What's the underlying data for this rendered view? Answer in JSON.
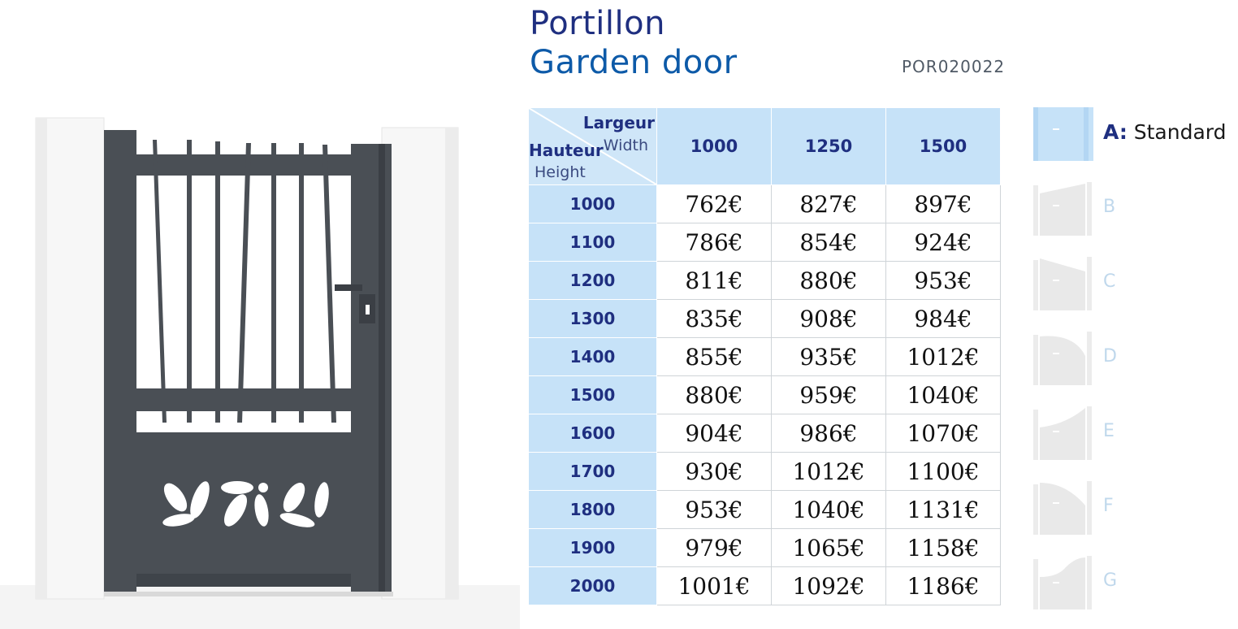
{
  "product": {
    "title_fr": "Portillon",
    "title_en": "Garden door",
    "reference": "POR020022"
  },
  "table": {
    "header": {
      "largeur": "Largeur",
      "width": "Width",
      "hauteur": "Hauteur",
      "height": "Height"
    },
    "columns": [
      "1000",
      "1250",
      "1500"
    ],
    "rows": [
      {
        "height": "1000",
        "prices": [
          "762€",
          "827€",
          "897€"
        ]
      },
      {
        "height": "1100",
        "prices": [
          "786€",
          "854€",
          "924€"
        ]
      },
      {
        "height": "1200",
        "prices": [
          "811€",
          "880€",
          "953€"
        ]
      },
      {
        "height": "1300",
        "prices": [
          "835€",
          "908€",
          "984€"
        ]
      },
      {
        "height": "1400",
        "prices": [
          "855€",
          "935€",
          "1012€"
        ]
      },
      {
        "height": "1500",
        "prices": [
          "880€",
          "959€",
          "1040€"
        ]
      },
      {
        "height": "1600",
        "prices": [
          "904€",
          "986€",
          "1070€"
        ]
      },
      {
        "height": "1700",
        "prices": [
          "930€",
          "1012€",
          "1100€"
        ]
      },
      {
        "height": "1800",
        "prices": [
          "953€",
          "1040€",
          "1131€"
        ]
      },
      {
        "height": "1900",
        "prices": [
          "979€",
          "1065€",
          "1158€"
        ]
      },
      {
        "height": "2000",
        "prices": [
          "1001€",
          "1092€",
          "1186€"
        ]
      }
    ]
  },
  "models": [
    {
      "letter": "A",
      "label": "Standard",
      "active": true
    },
    {
      "letter": "B",
      "label": "",
      "active": false
    },
    {
      "letter": "C",
      "label": "",
      "active": false
    },
    {
      "letter": "D",
      "label": "",
      "active": false
    },
    {
      "letter": "E",
      "label": "",
      "active": false
    },
    {
      "letter": "F",
      "label": "",
      "active": false
    },
    {
      "letter": "G",
      "label": "",
      "active": false
    }
  ],
  "colors": {
    "title_dark": "#1f2f80",
    "title_blue": "#0d5aa8",
    "header_fill": "#c6e2f8",
    "gate_frame": "#4a4f55"
  }
}
